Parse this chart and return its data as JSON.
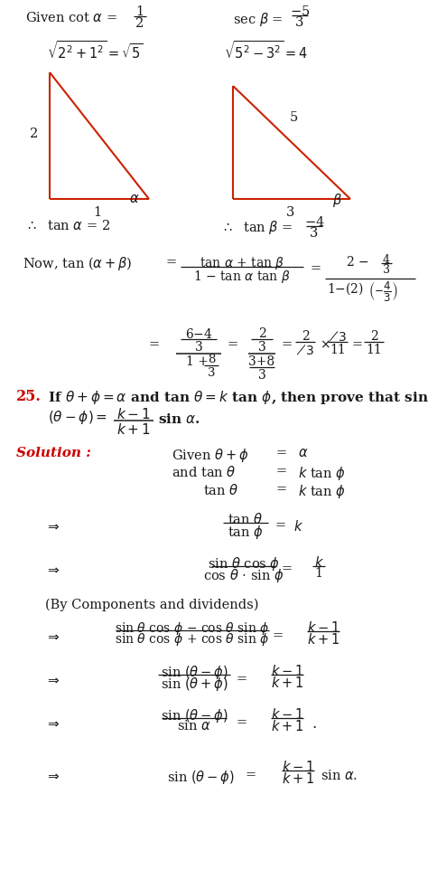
{
  "bg_color": "#ffffff",
  "red_color": "#cc0000",
  "tri_color": "#cc2200",
  "fig_width": 4.74,
  "fig_height": 9.83,
  "dpi": 100
}
